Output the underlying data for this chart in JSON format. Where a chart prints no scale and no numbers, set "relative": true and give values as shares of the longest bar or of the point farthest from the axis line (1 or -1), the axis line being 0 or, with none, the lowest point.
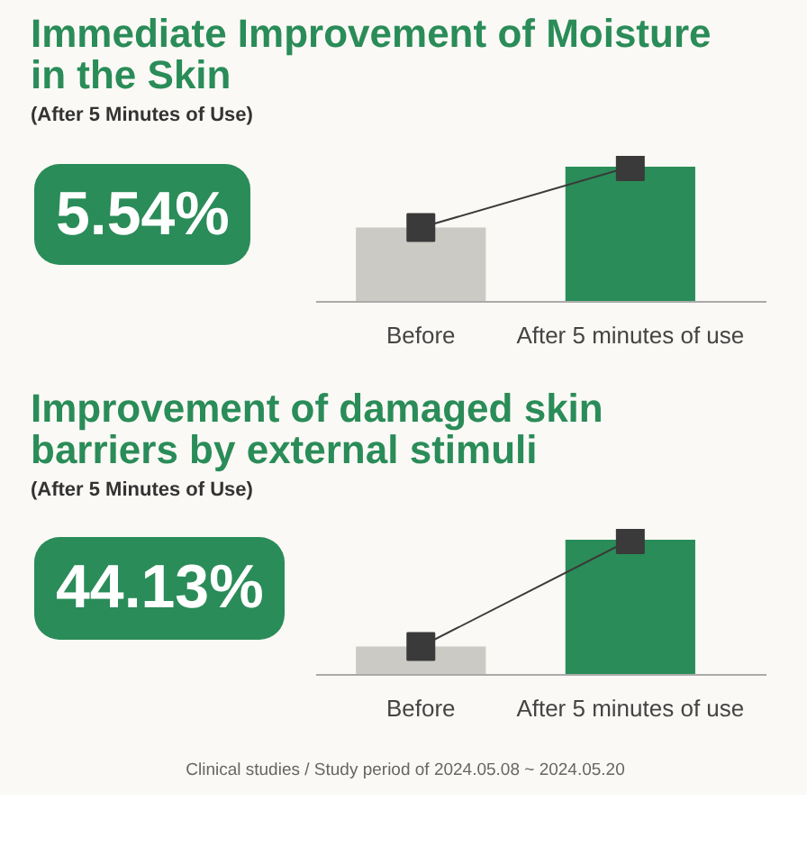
{
  "chart_data": [
    {
      "type": "bar",
      "title": "Immediate Improvement of Moisture in the Skin",
      "subtitle": "(After 5 Minutes of Use)",
      "categories": [
        "Before",
        "After 5 minutes of use"
      ],
      "relative": true,
      "series": [
        {
          "colors": [
            "#cbcac4",
            "#2a8c58"
          ],
          "values": [
            0.55,
            1
          ]
        },
        {
          "type": "line",
          "color": "#3a3a3a",
          "marker": "square",
          "values": [
            0.55,
            1
          ]
        }
      ],
      "annotations": [
        "5.54%"
      ]
    },
    {
      "type": "bar",
      "title": "Improvement of damaged skin barriers by external stimuli",
      "subtitle": "(After 5 Minutes of Use)",
      "categories": [
        "Before",
        "After 5 minutes of use"
      ],
      "relative": true,
      "series": [
        {
          "colors": [
            "#cbcac4",
            "#2a8c58"
          ],
          "values": [
            0.21,
            1
          ]
        },
        {
          "type": "line",
          "color": "#3a3a3a",
          "marker": "square",
          "values": [
            0.21,
            1
          ]
        }
      ],
      "annotations": [
        "44.13%",
        "Clinical studies / Study period of 2024.05.08 ~ 2024.05.20"
      ]
    }
  ]
}
